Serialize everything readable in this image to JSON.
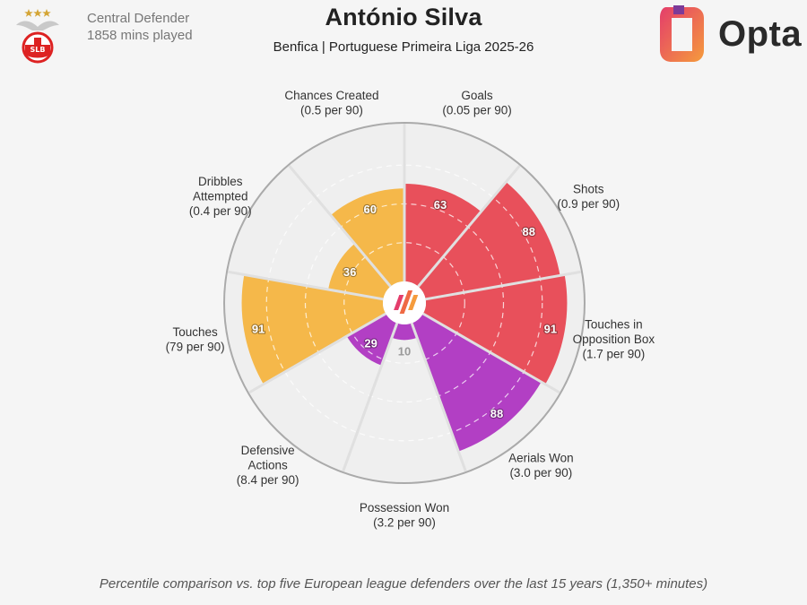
{
  "header": {
    "position": "Central Defender",
    "minutes": "1858 mins played",
    "title": "António Silva",
    "subtitle": "Benfica | Portuguese Primeira Liga 2025-26",
    "brand": "Opta"
  },
  "footer": {
    "note": "Percentile comparison vs. top five European league defenders over the last 15 years (1,350+ minutes)"
  },
  "colors": {
    "attacking": "#e8505b",
    "defending": "#b23fc4",
    "possession": "#f5b84a",
    "background": "#f5f5f5",
    "circle_fill": "#efefef",
    "ring": "#d4d4d4",
    "spoke": "#ffffff"
  },
  "chart_data": {
    "type": "polar-bar",
    "scale_max": 100,
    "rings": [
      25,
      50,
      75,
      100
    ],
    "metrics": [
      {
        "name": "Goals",
        "rate": "(0.05 per 90)",
        "percentile": 63,
        "group": "attacking"
      },
      {
        "name": "Shots",
        "rate": "(0.9 per 90)",
        "percentile": 88,
        "group": "attacking"
      },
      {
        "name": "Touches in Opposition Box",
        "rate": "(1.7 per 90)",
        "percentile": 91,
        "group": "attacking"
      },
      {
        "name": "Aerials Won",
        "rate": "(3.0 per 90)",
        "percentile": 88,
        "group": "defending"
      },
      {
        "name": "Possession Won",
        "rate": "(3.2 per 90)",
        "percentile": 10,
        "group": "defending"
      },
      {
        "name": "Defensive Actions",
        "rate": "(8.4 per 90)",
        "percentile": 29,
        "group": "defending"
      },
      {
        "name": "Touches",
        "rate": "(79 per 90)",
        "percentile": 91,
        "group": "possession"
      },
      {
        "name": "Dribbles Attempted",
        "rate": "(0.4 per 90)",
        "percentile": 36,
        "group": "possession"
      },
      {
        "name": "Chances Created",
        "rate": "(0.5 per 90)",
        "percentile": 60,
        "group": "possession"
      }
    ]
  }
}
